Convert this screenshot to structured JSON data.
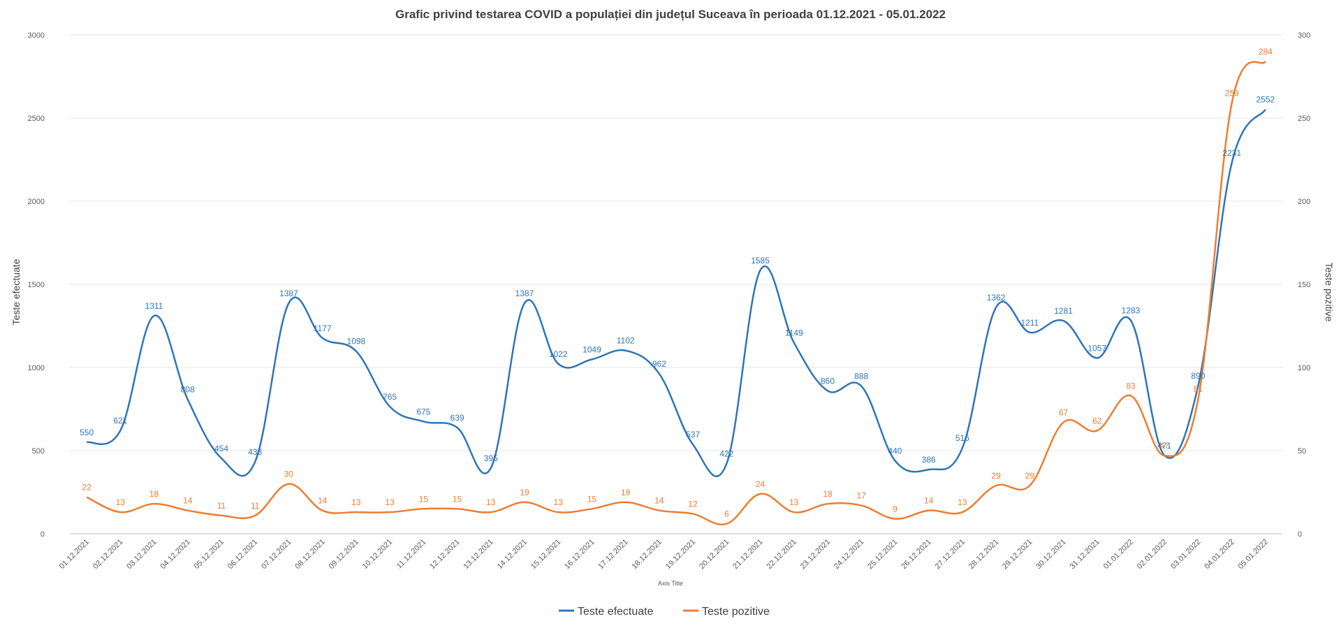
{
  "chart_data": {
    "type": "line",
    "title": "Grafic privind testarea COVID a populației din județul Suceava în perioada 01.12.2021 - 05.01.2022",
    "xlabel": "Axis Title",
    "ylabel_left": "Teste efectuate",
    "ylabel_right": "Teste pozitive",
    "ylim_left": [
      0,
      3000
    ],
    "ylim_right": [
      0,
      300
    ],
    "yticks_left": [
      "0",
      "500",
      "1000",
      "1500",
      "2000",
      "2500",
      "3000"
    ],
    "yticks_right": [
      "0",
      "50",
      "100",
      "150",
      "200",
      "250",
      "300"
    ],
    "grid": true,
    "legend_position": "bottom",
    "categories": [
      "01.12.2021",
      "02.12.2021",
      "03.12.2021",
      "04.12.2021",
      "05.12.2021",
      "06.12.2021",
      "07.12.2021",
      "08.12.2021",
      "09.12.2021",
      "10.12.2021",
      "11.12.2021",
      "12.12.2021",
      "13.12.2021",
      "14.12.2021",
      "15.12.2021",
      "16.12.2021",
      "17.12.2021",
      "18.12.2021",
      "19.12.2021",
      "20.12.2021",
      "21.12.2021",
      "22.12.2021",
      "23.12.2021",
      "24.12.2021",
      "25.12.2021",
      "26.12.2021",
      "27.12.2021",
      "28.12.2021",
      "29.12.2021",
      "30.12.2021",
      "31.12.2021",
      "01.01.2022",
      "02.01.2022",
      "03.01.2022",
      "04.01.2022",
      "05.01.2022"
    ],
    "series": [
      {
        "name": "Teste efectuate",
        "axis": "left",
        "color": "#2E75B6",
        "values": [
          550,
          621,
          1311,
          808,
          454,
          433,
          1387,
          1177,
          1098,
          765,
          675,
          639,
          395,
          1387,
          1022,
          1049,
          1102,
          962,
          537,
          422,
          1585,
          1149,
          860,
          888,
          440,
          386,
          516,
          1362,
          1211,
          1281,
          1057,
          1283,
          471,
          890,
          2231,
          2552
        ]
      },
      {
        "name": "Teste pozitive",
        "axis": "right",
        "color": "#ED7D31",
        "values": [
          22,
          13,
          18,
          14,
          11,
          11,
          30,
          14,
          13,
          13,
          15,
          15,
          13,
          19,
          13,
          15,
          19,
          14,
          12,
          6,
          24,
          13,
          18,
          17,
          9,
          14,
          13,
          29,
          29,
          67,
          62,
          83,
          47,
          81,
          259,
          284
        ]
      }
    ]
  }
}
